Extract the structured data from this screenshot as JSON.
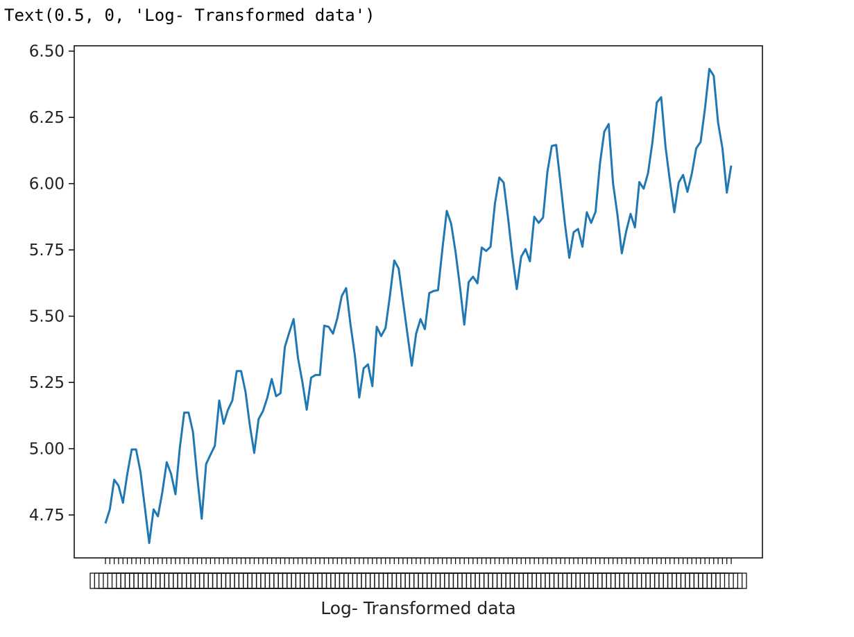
{
  "output_text": "Text(0.5, 0, 'Log- Transformed data')",
  "chart_data": {
    "type": "line",
    "title": "",
    "xlabel": "Log- Transformed data",
    "ylabel": "",
    "ylim": [
      4.588,
      6.52
    ],
    "yticks": [
      4.75,
      5.0,
      5.25,
      5.5,
      5.75,
      6.0,
      6.25,
      6.5
    ],
    "ytick_labels": [
      "4.75",
      "5.00",
      "5.25",
      "5.50",
      "5.75",
      "6.00",
      "6.25",
      "6.50"
    ],
    "grid": false,
    "legend": "none",
    "line_color": "#1f77b4",
    "x_ticks_note": "one dense, overlapping tick label per data point (illegible)",
    "series": [
      {
        "values": [
          4.718,
          4.771,
          4.883,
          4.86,
          4.796,
          4.905,
          4.997,
          4.997,
          4.913,
          4.779,
          4.644,
          4.771,
          4.745,
          4.836,
          4.949,
          4.905,
          4.828,
          5.004,
          5.136,
          5.136,
          5.063,
          4.89,
          4.736,
          4.942,
          4.977,
          5.011,
          5.182,
          5.094,
          5.147,
          5.182,
          5.293,
          5.293,
          5.215,
          5.088,
          4.984,
          5.112,
          5.142,
          5.193,
          5.263,
          5.198,
          5.209,
          5.384,
          5.438,
          5.489,
          5.342,
          5.252,
          5.147,
          5.268,
          5.278,
          5.278,
          5.464,
          5.46,
          5.434,
          5.493,
          5.576,
          5.606,
          5.468,
          5.352,
          5.193,
          5.303,
          5.318,
          5.236,
          5.46,
          5.425,
          5.455,
          5.576,
          5.71,
          5.68,
          5.557,
          5.434,
          5.313,
          5.434,
          5.489,
          5.451,
          5.587,
          5.595,
          5.598,
          5.753,
          5.897,
          5.849,
          5.743,
          5.613,
          5.468,
          5.628,
          5.649,
          5.624,
          5.759,
          5.746,
          5.762,
          5.924,
          6.023,
          6.004,
          5.872,
          5.724,
          5.602,
          5.724,
          5.753,
          5.707,
          5.875,
          5.852,
          5.872,
          6.045,
          6.142,
          6.146,
          6.001,
          5.849,
          5.72,
          5.817,
          5.829,
          5.762,
          5.892,
          5.852,
          5.894,
          6.075,
          6.196,
          6.225,
          6.001,
          5.883,
          5.737,
          5.82,
          5.886,
          5.835,
          6.006,
          5.981,
          6.04,
          6.157,
          6.306,
          6.326,
          6.138,
          6.009,
          5.892,
          6.004,
          6.033,
          5.969,
          6.038,
          6.133,
          6.157,
          6.282,
          6.433,
          6.407,
          6.23,
          6.133,
          5.966,
          6.068
        ]
      }
    ]
  }
}
